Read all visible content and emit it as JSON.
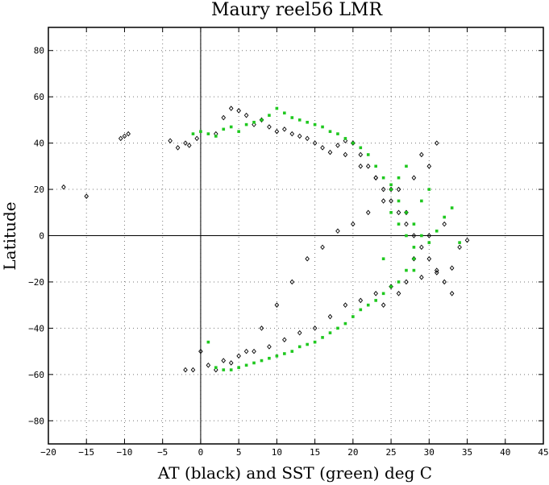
{
  "chart_data": {
    "type": "scatter",
    "title": "Maury reel56 LMR",
    "xlabel": "AT (black) and SST (green) deg C",
    "ylabel": "Latitude",
    "xlim": [
      -20,
      45
    ],
    "ylim": [
      -90,
      90
    ],
    "xticks": [
      -20,
      -15,
      -10,
      -5,
      0,
      5,
      10,
      15,
      20,
      25,
      30,
      35,
      40,
      45
    ],
    "yticks": [
      -80,
      -60,
      -40,
      -20,
      0,
      20,
      40,
      60,
      80
    ],
    "xtick_labels": [
      "−20",
      "−15",
      "−10",
      "−5",
      "0",
      "5",
      "10",
      "15",
      "20",
      "25",
      "30",
      "35",
      "40",
      "45"
    ],
    "ytick_labels": [
      "−80",
      "−60",
      "−40",
      "−20",
      "0",
      "20",
      "40",
      "60",
      "80"
    ],
    "grid": true,
    "grid_style": "dotted",
    "zero_lines": true,
    "colors": {
      "at": "#000000",
      "sst": "#1fc81f"
    },
    "series": [
      {
        "color": "#000000",
        "marker": "open-diamond",
        "x": [
          -18,
          -15,
          -10,
          -9.5,
          -10.5,
          -4,
          -2,
          -1.5,
          -3,
          -0.5,
          2,
          3,
          4,
          5,
          6,
          7,
          8,
          9,
          10,
          11,
          12,
          13,
          14,
          15,
          16,
          17,
          18,
          19,
          20,
          21,
          22,
          23,
          24,
          25,
          26,
          27,
          28,
          29,
          30,
          31,
          32,
          33,
          34,
          35,
          30,
          28,
          26,
          24,
          22,
          20,
          18,
          16,
          14,
          12,
          10,
          8,
          6,
          4,
          2,
          -1,
          -2,
          0,
          1,
          3,
          5,
          7,
          9,
          11,
          13,
          15,
          17,
          19,
          21,
          23,
          25,
          27,
          29,
          31,
          33,
          24,
          26,
          28,
          30,
          32,
          27,
          25,
          23,
          21,
          19,
          29,
          31
        ],
        "y": [
          21,
          17,
          43,
          44,
          42,
          41,
          40,
          39,
          38,
          42,
          44,
          51,
          55,
          54,
          52,
          48,
          50,
          47,
          45,
          46,
          44,
          43,
          42,
          40,
          38,
          36,
          39,
          41,
          40,
          35,
          30,
          25,
          20,
          15,
          10,
          5,
          0,
          -5,
          -10,
          -15,
          -20,
          -25,
          -5,
          -2,
          30,
          25,
          20,
          15,
          10,
          5,
          2,
          -5,
          -10,
          -20,
          -30,
          -40,
          -50,
          -55,
          -58,
          -58,
          -58,
          -50,
          -56,
          -54,
          -52,
          -50,
          -48,
          -45,
          -42,
          -40,
          -35,
          -30,
          -28,
          -25,
          -22,
          -20,
          -18,
          -16,
          -14,
          -30,
          -25,
          -10,
          0,
          5,
          10,
          20,
          25,
          30,
          35,
          35,
          40
        ]
      },
      {
        "color": "#1fc81f",
        "marker": "filled-square",
        "x": [
          -1,
          0,
          1,
          2,
          3,
          4,
          5,
          6,
          7,
          8,
          9,
          10,
          11,
          12,
          13,
          14,
          15,
          16,
          17,
          18,
          19,
          20,
          21,
          22,
          23,
          24,
          25,
          26,
          27,
          28,
          29,
          30,
          31,
          32,
          33,
          34,
          28,
          27,
          26,
          25,
          24,
          23,
          22,
          21,
          20,
          19,
          18,
          17,
          16,
          15,
          14,
          13,
          12,
          11,
          10,
          9,
          8,
          7,
          6,
          5,
          4,
          3,
          2,
          1,
          27,
          26,
          28,
          25,
          29,
          30,
          24,
          26,
          28,
          27,
          25
        ],
        "y": [
          44,
          45,
          44,
          43,
          46,
          47,
          45,
          48,
          49,
          50,
          52,
          55,
          53,
          51,
          50,
          49,
          48,
          47,
          45,
          44,
          42,
          40,
          38,
          35,
          30,
          25,
          20,
          15,
          10,
          5,
          0,
          -3,
          2,
          8,
          12,
          -3,
          -10,
          -15,
          -20,
          -22,
          -25,
          -28,
          -30,
          -32,
          -35,
          -38,
          -40,
          -42,
          -44,
          -46,
          -47,
          -48,
          -50,
          -51,
          -52,
          -53,
          -54,
          -55,
          -56,
          -57,
          -58,
          -58,
          -57,
          -46,
          0,
          5,
          -5,
          10,
          15,
          20,
          -10,
          25,
          -15,
          30,
          22
        ]
      }
    ]
  }
}
